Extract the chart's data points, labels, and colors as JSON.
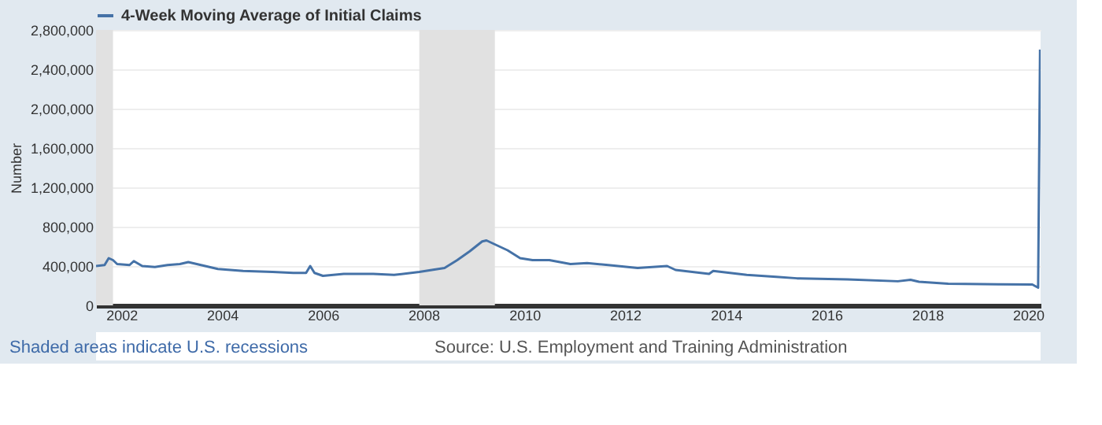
{
  "chart_data": {
    "type": "line",
    "ylabel": "Number",
    "annotations": [
      "Shaded areas indicate U.S. recessions",
      "Source: U.S. Employment and Training Administration"
    ],
    "x": [
      "2001-07",
      "2001-09",
      "2001-10",
      "2001-11",
      "2001-12",
      "2002-03",
      "2002-04",
      "2002-06",
      "2002-09",
      "2002-12",
      "2003-03",
      "2003-05",
      "2003-08",
      "2003-12",
      "2004-06",
      "2005-01",
      "2005-06",
      "2005-09",
      "2005-10",
      "2005-11",
      "2006-01",
      "2006-06",
      "2007-01",
      "2007-06",
      "2007-12",
      "2008-03",
      "2008-06",
      "2008-09",
      "2008-12",
      "2009-03",
      "2009-04",
      "2009-06",
      "2009-09",
      "2009-12",
      "2010-03",
      "2010-07",
      "2010-12",
      "2011-04",
      "2011-09",
      "2012-04",
      "2012-11",
      "2013-01",
      "2013-09",
      "2013-10",
      "2014-06",
      "2015-01",
      "2015-06",
      "2016-06",
      "2017-06",
      "2017-09",
      "2017-11",
      "2018-06",
      "2019-06",
      "2020-02",
      "2020-03-14",
      "2020-03-28"
    ],
    "series": [
      {
        "name": "4-Week Moving Average of Initial Claims",
        "color": "#4572a7",
        "values": [
          400000,
          410000,
          480000,
          460000,
          420000,
          410000,
          450000,
          400000,
          390000,
          410000,
          420000,
          440000,
          410000,
          370000,
          350000,
          340000,
          330000,
          330000,
          400000,
          330000,
          300000,
          320000,
          320000,
          310000,
          340000,
          360000,
          380000,
          460000,
          550000,
          650000,
          660000,
          620000,
          560000,
          480000,
          460000,
          460000,
          420000,
          430000,
          410000,
          380000,
          400000,
          360000,
          320000,
          350000,
          310000,
          290000,
          275000,
          265000,
          245000,
          260000,
          240000,
          220000,
          215000,
          212000,
          180000,
          2600000
        ]
      }
    ],
    "xlim": [
      "2001-07",
      "2020-04"
    ],
    "xticks": [
      {
        "value": "2002",
        "label": "2002"
      },
      {
        "value": "2004",
        "label": "2004"
      },
      {
        "value": "2006",
        "label": "2006"
      },
      {
        "value": "2008",
        "label": "2008"
      },
      {
        "value": "2010",
        "label": "2010"
      },
      {
        "value": "2012",
        "label": "2012"
      },
      {
        "value": "2014",
        "label": "2014"
      },
      {
        "value": "2016",
        "label": "2016"
      },
      {
        "value": "2018",
        "label": "2018"
      },
      {
        "value": "2020",
        "label": "2020"
      }
    ],
    "ylim": [
      0,
      2800000
    ],
    "yticks": [
      0,
      {
        "value": 400000,
        "label": "400,000"
      },
      {
        "value": 800000,
        "label": "800,000"
      },
      {
        "value": 1200000,
        "label": "1,200,000"
      },
      {
        "value": 1600000,
        "label": "1,600,000"
      },
      {
        "value": 2000000,
        "label": "2,000,000"
      },
      {
        "value": 2400000,
        "label": "2,400,000"
      },
      {
        "value": 2800000,
        "label": "2,800,000"
      }
    ],
    "bands": [
      {
        "axis": "x",
        "from": "2001-03",
        "to": "2001-11",
        "color": "#e1e1e1"
      },
      {
        "axis": "x",
        "from": "2007-12",
        "to": "2009-06",
        "color": "#e1e1e1"
      }
    ],
    "grid": "y",
    "legend": "top left"
  }
}
